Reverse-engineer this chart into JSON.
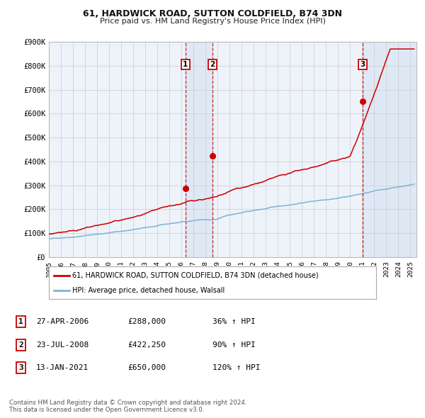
{
  "title": "61, HARDWICK ROAD, SUTTON COLDFIELD, B74 3DN",
  "subtitle": "Price paid vs. HM Land Registry's House Price Index (HPI)",
  "legend_line1": "61, HARDWICK ROAD, SUTTON COLDFIELD, B74 3DN (detached house)",
  "legend_line2": "HPI: Average price, detached house, Walsall",
  "footer": "Contains HM Land Registry data © Crown copyright and database right 2024.\nThis data is licensed under the Open Government Licence v3.0.",
  "sale_color": "#cc0000",
  "hpi_color": "#7fb3d3",
  "background_color": "#ffffff",
  "plot_bg_color": "#eef3fa",
  "grid_color": "#cccccc",
  "transactions": [
    {
      "label": "1",
      "date_str": "27-APR-2006",
      "year": 2006.32,
      "price": 288000,
      "pct": "36% ↑ HPI"
    },
    {
      "label": "2",
      "date_str": "23-JUL-2008",
      "year": 2008.56,
      "price": 422250,
      "pct": "90% ↑ HPI"
    },
    {
      "label": "3",
      "date_str": "13-JAN-2021",
      "year": 2021.04,
      "price": 650000,
      "pct": "120% ↑ HPI"
    }
  ],
  "xmin": 1995.0,
  "xmax": 2025.5,
  "ymin": 0,
  "ymax": 900000,
  "yticks": [
    0,
    100000,
    200000,
    300000,
    400000,
    500000,
    600000,
    700000,
    800000,
    900000
  ],
  "ytick_labels": [
    "£0",
    "£100K",
    "£200K",
    "£300K",
    "£400K",
    "£500K",
    "£600K",
    "£700K",
    "£800K",
    "£900K"
  ],
  "price_labels": [
    "£288,000",
    "£422,250",
    "£650,000"
  ]
}
